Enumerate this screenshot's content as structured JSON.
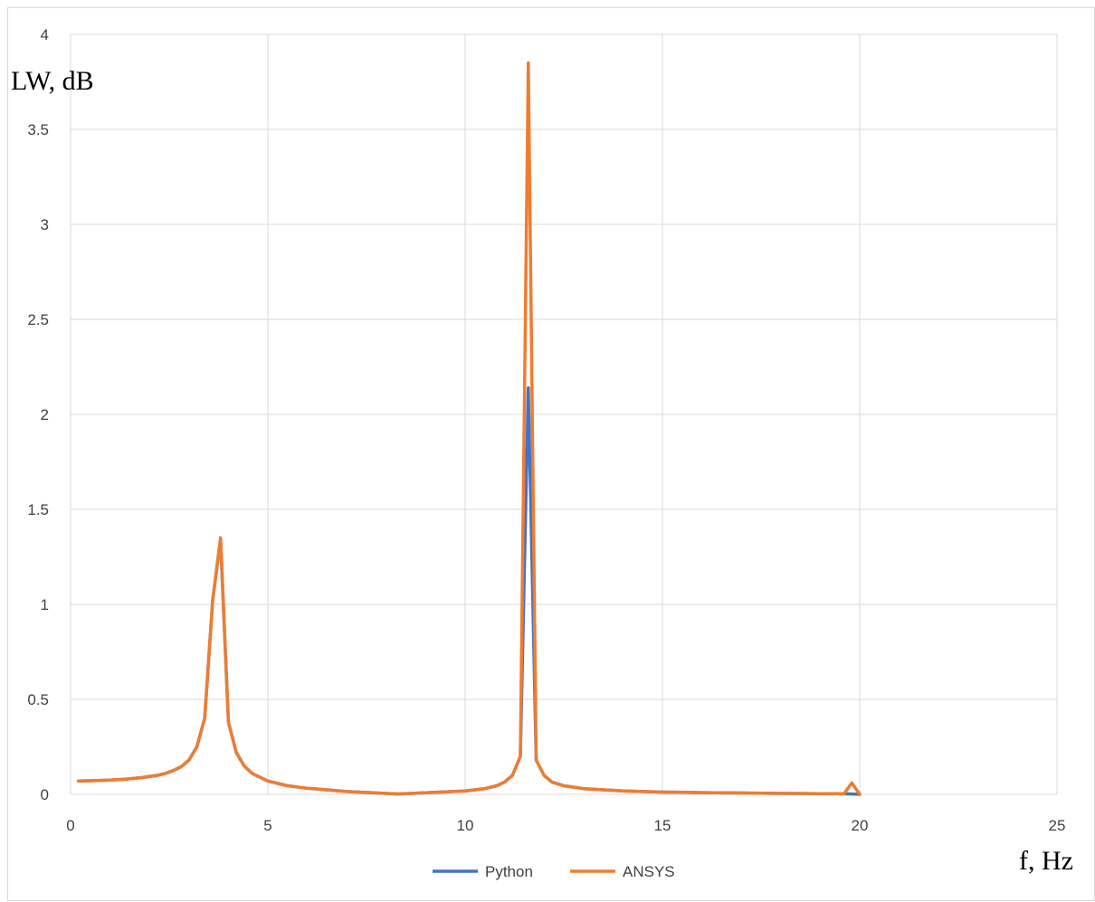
{
  "chart_data": {
    "type": "line",
    "title": "",
    "xlabel": "f, Hz",
    "ylabel": "LW, dB",
    "xlim": [
      0,
      25
    ],
    "ylim": [
      0,
      4
    ],
    "x_ticks": [
      "0",
      "5",
      "10",
      "15",
      "20",
      "25"
    ],
    "y_ticks": [
      "0",
      "0.5",
      "1",
      "1.5",
      "2",
      "2.5",
      "3",
      "3.5",
      "4"
    ],
    "grid": true,
    "legend_position": "bottom",
    "series": [
      {
        "name": "Python",
        "color": "#4472c4",
        "x": [
          0.2,
          0.6,
          1.0,
          1.4,
          1.8,
          2.2,
          2.4,
          2.6,
          2.8,
          3.0,
          3.2,
          3.4,
          3.6,
          3.8,
          4.0,
          4.2,
          4.4,
          4.6,
          5.0,
          5.5,
          6.0,
          7.0,
          8.3,
          9.0,
          10.0,
          10.5,
          10.8,
          11.0,
          11.2,
          11.4,
          11.6,
          11.8,
          12.0,
          12.2,
          12.5,
          13.0,
          14.0,
          15.0,
          16.0,
          17.0,
          18.0,
          19.0,
          19.6,
          19.8,
          20.0
        ],
        "y": [
          0.07,
          0.072,
          0.075,
          0.08,
          0.088,
          0.1,
          0.11,
          0.125,
          0.145,
          0.18,
          0.25,
          0.4,
          1.02,
          1.34,
          0.38,
          0.22,
          0.15,
          0.11,
          0.07,
          0.045,
          0.032,
          0.015,
          0.002,
          0.008,
          0.018,
          0.03,
          0.045,
          0.065,
          0.1,
          0.2,
          2.14,
          0.18,
          0.1,
          0.065,
          0.045,
          0.03,
          0.018,
          0.012,
          0.009,
          0.007,
          0.005,
          0.004,
          0.003,
          0.002,
          0.0
        ]
      },
      {
        "name": "ANSYS",
        "color": "#ed7d31",
        "x": [
          0.2,
          0.6,
          1.0,
          1.4,
          1.8,
          2.2,
          2.4,
          2.6,
          2.8,
          3.0,
          3.2,
          3.4,
          3.6,
          3.8,
          4.0,
          4.2,
          4.4,
          4.6,
          5.0,
          5.5,
          6.0,
          7.0,
          8.3,
          9.0,
          10.0,
          10.5,
          10.8,
          11.0,
          11.2,
          11.4,
          11.6,
          11.8,
          12.0,
          12.2,
          12.5,
          13.0,
          14.0,
          15.0,
          16.0,
          17.0,
          18.0,
          19.0,
          19.6,
          19.8,
          20.0
        ],
        "y": [
          0.07,
          0.072,
          0.075,
          0.08,
          0.088,
          0.1,
          0.11,
          0.125,
          0.145,
          0.18,
          0.25,
          0.4,
          1.02,
          1.35,
          0.38,
          0.22,
          0.15,
          0.11,
          0.07,
          0.045,
          0.032,
          0.015,
          0.002,
          0.008,
          0.018,
          0.03,
          0.045,
          0.065,
          0.1,
          0.2,
          3.85,
          0.18,
          0.1,
          0.065,
          0.045,
          0.03,
          0.018,
          0.012,
          0.009,
          0.007,
          0.005,
          0.004,
          0.003,
          0.06,
          0.0
        ]
      }
    ]
  }
}
